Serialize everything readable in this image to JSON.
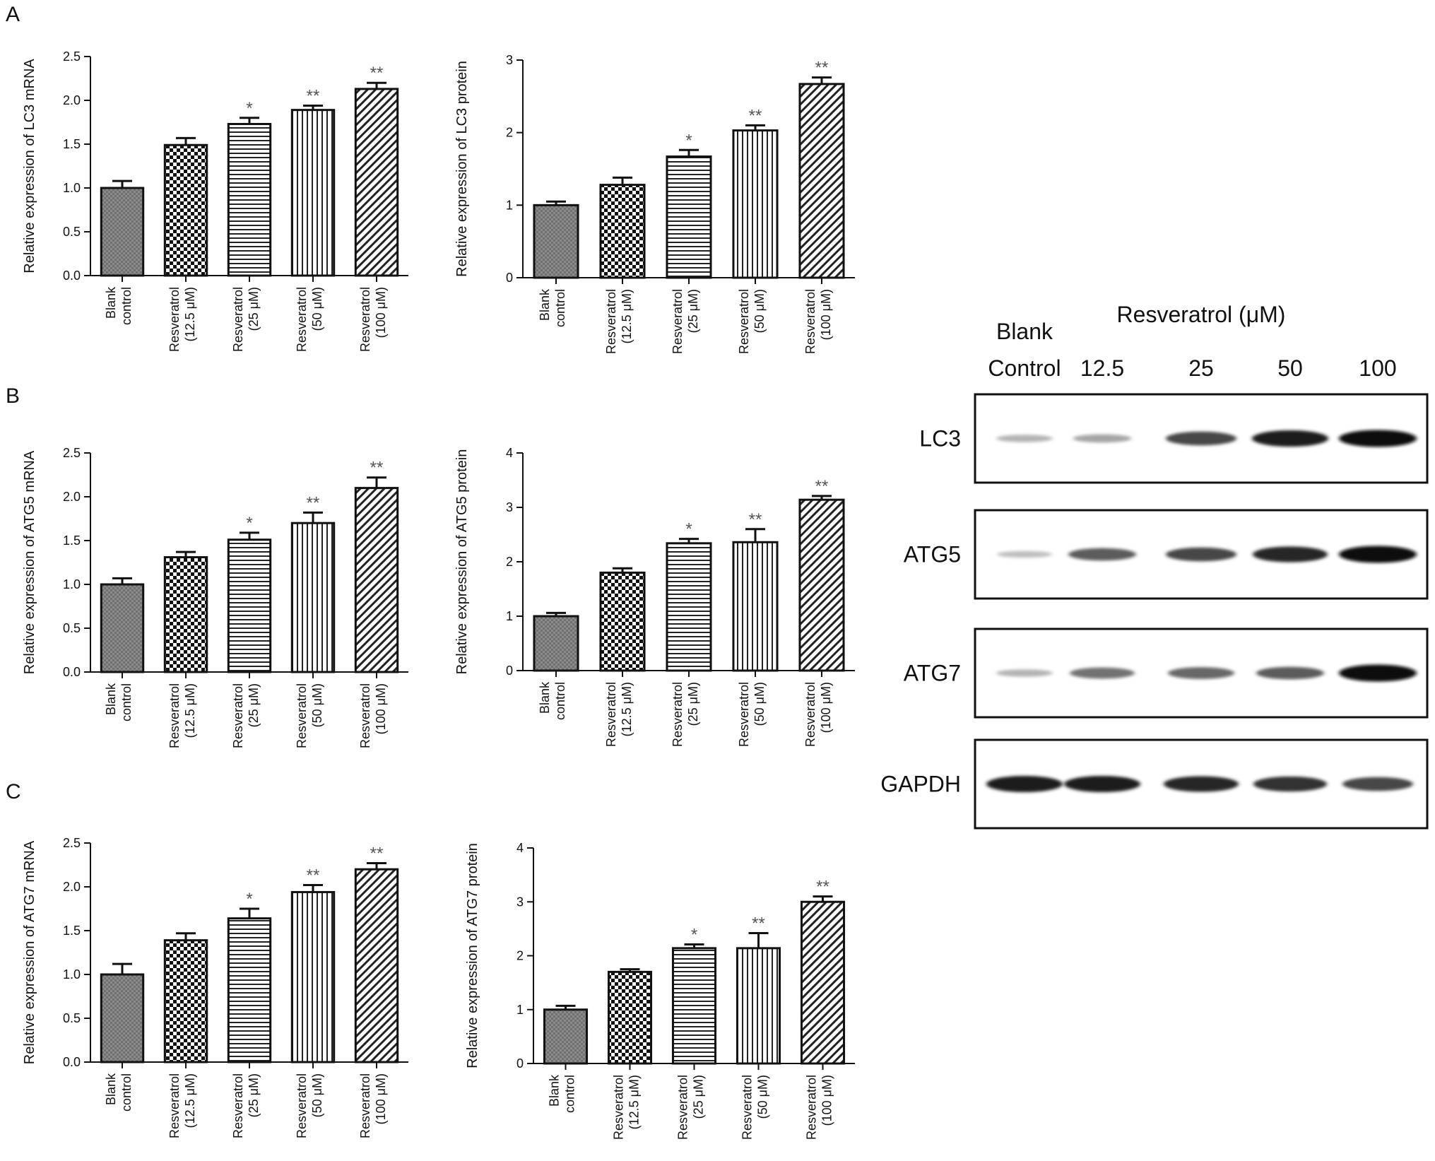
{
  "panels": [
    "A",
    "B",
    "C"
  ],
  "colors": {
    "axis": "#111111",
    "bar_edge": "#111111",
    "star": "#555555",
    "band": "#111111"
  },
  "chart_data": [
    {
      "type": "bar",
      "panel": "A",
      "ylabel": "Relative expression of LC3 mRNA",
      "ylim": [
        0,
        2.5
      ],
      "yticks": [
        "0.0",
        "0.5",
        "1.0",
        "1.5",
        "2.0",
        "2.5"
      ],
      "categories": [
        [
          "Blank",
          "control"
        ],
        [
          "Resveratrol",
          "(12.5 μM)"
        ],
        [
          "Resveratrol",
          "(25 μM)"
        ],
        [
          "Resveratrol",
          "(50 μM)"
        ],
        [
          "Resveratrol",
          "(100 μM)"
        ]
      ],
      "values": [
        1.0,
        1.49,
        1.73,
        1.89,
        2.13
      ],
      "errors": [
        0.08,
        0.08,
        0.07,
        0.05,
        0.07
      ],
      "significance": [
        "",
        "",
        "*",
        "**",
        "**"
      ]
    },
    {
      "type": "bar",
      "panel": "A",
      "ylabel": "Relative expression of LC3 protein",
      "ylim": [
        0,
        3
      ],
      "yticks": [
        "0",
        "1",
        "2",
        "3"
      ],
      "categories": [
        [
          "Blank",
          "control"
        ],
        [
          "Resveratrol",
          "(12.5 μM)"
        ],
        [
          "Resveratrol",
          "(25 μM)"
        ],
        [
          "Resveratrol",
          "(50 μM)"
        ],
        [
          "Resveratrol",
          "(100 μM)"
        ]
      ],
      "values": [
        1.0,
        1.28,
        1.67,
        2.03,
        2.67
      ],
      "errors": [
        0.05,
        0.1,
        0.09,
        0.07,
        0.09
      ],
      "significance": [
        "",
        "",
        "*",
        "**",
        "**"
      ]
    },
    {
      "type": "bar",
      "panel": "B",
      "ylabel": "Relative expression of ATG5 mRNA",
      "ylim": [
        0,
        2.5
      ],
      "yticks": [
        "0.0",
        "0.5",
        "1.0",
        "1.5",
        "2.0",
        "2.5"
      ],
      "categories": [
        [
          "Blank",
          "control"
        ],
        [
          "Resveratrol",
          "(12.5 μM)"
        ],
        [
          "Resveratrol",
          "(25 μM)"
        ],
        [
          "Resveratrol",
          "(50 μM)"
        ],
        [
          "Resveratrol",
          "(100 μM)"
        ]
      ],
      "values": [
        1.0,
        1.31,
        1.51,
        1.7,
        2.1
      ],
      "errors": [
        0.07,
        0.06,
        0.08,
        0.12,
        0.12
      ],
      "significance": [
        "",
        "",
        "*",
        "**",
        "**"
      ]
    },
    {
      "type": "bar",
      "panel": "B",
      "ylabel": "Relative expression of ATG5 protein",
      "ylim": [
        0,
        4
      ],
      "yticks": [
        "0",
        "1",
        "2",
        "3",
        "4"
      ],
      "categories": [
        [
          "Blank",
          "control"
        ],
        [
          "Resveratrol",
          "(12.5 μM)"
        ],
        [
          "Resveratrol",
          "(25 μM)"
        ],
        [
          "Resveratrol",
          "(50 μM)"
        ],
        [
          "Resveratrol",
          "(100 μM)"
        ]
      ],
      "values": [
        1.0,
        1.8,
        2.34,
        2.36,
        3.14
      ],
      "errors": [
        0.06,
        0.08,
        0.08,
        0.24,
        0.07
      ],
      "significance": [
        "",
        "",
        "*",
        "**",
        "**"
      ]
    },
    {
      "type": "bar",
      "panel": "C",
      "ylabel": "Relative expression of ATG7 mRNA",
      "ylim": [
        0,
        2.5
      ],
      "yticks": [
        "0.0",
        "0.5",
        "1.0",
        "1.5",
        "2.0",
        "2.5"
      ],
      "categories": [
        [
          "Blank",
          "control"
        ],
        [
          "Resveratrol",
          "(12.5 μM)"
        ],
        [
          "Resveratrol",
          "(25 μM)"
        ],
        [
          "Resveratrol",
          "(50 μM)"
        ],
        [
          "Resveratrol",
          "(100 μM)"
        ]
      ],
      "values": [
        1.0,
        1.39,
        1.64,
        1.94,
        2.2
      ],
      "errors": [
        0.12,
        0.08,
        0.11,
        0.08,
        0.07
      ],
      "significance": [
        "",
        "",
        "*",
        "**",
        "**"
      ]
    },
    {
      "type": "bar",
      "panel": "C",
      "ylabel": "Relative expression of ATG7 protein",
      "ylim": [
        0,
        4
      ],
      "yticks": [
        "0",
        "1",
        "2",
        "3",
        "4"
      ],
      "categories": [
        [
          "Blank",
          "control"
        ],
        [
          "Resveratrol",
          "(12.5 μM)"
        ],
        [
          "Resveratrol",
          "(25 μM)"
        ],
        [
          "Resveratrol",
          "(50 μM)"
        ],
        [
          "Resveratrol",
          "(100 μM)"
        ]
      ],
      "values": [
        1.0,
        1.7,
        2.14,
        2.14,
        3.0
      ],
      "errors": [
        0.07,
        0.05,
        0.07,
        0.28,
        0.1
      ],
      "significance": [
        "",
        "",
        "*",
        "**",
        "**"
      ]
    }
  ],
  "western_blot": {
    "header_group": "Resveratrol (μM)",
    "lanes": [
      [
        "Blank",
        "Control"
      ],
      [
        "",
        "12.5"
      ],
      [
        "",
        "25"
      ],
      [
        "",
        "50"
      ],
      [
        "",
        "100"
      ]
    ],
    "rows": [
      {
        "label": "LC3",
        "intensity": [
          0.25,
          0.32,
          0.75,
          0.95,
          1.0
        ]
      },
      {
        "label": "ATG5",
        "intensity": [
          0.2,
          0.65,
          0.75,
          0.9,
          1.0
        ]
      },
      {
        "label": "ATG7",
        "intensity": [
          0.25,
          0.55,
          0.6,
          0.65,
          1.0
        ]
      },
      {
        "label": "GAPDH",
        "intensity": [
          0.95,
          0.95,
          0.9,
          0.85,
          0.75
        ]
      }
    ]
  }
}
